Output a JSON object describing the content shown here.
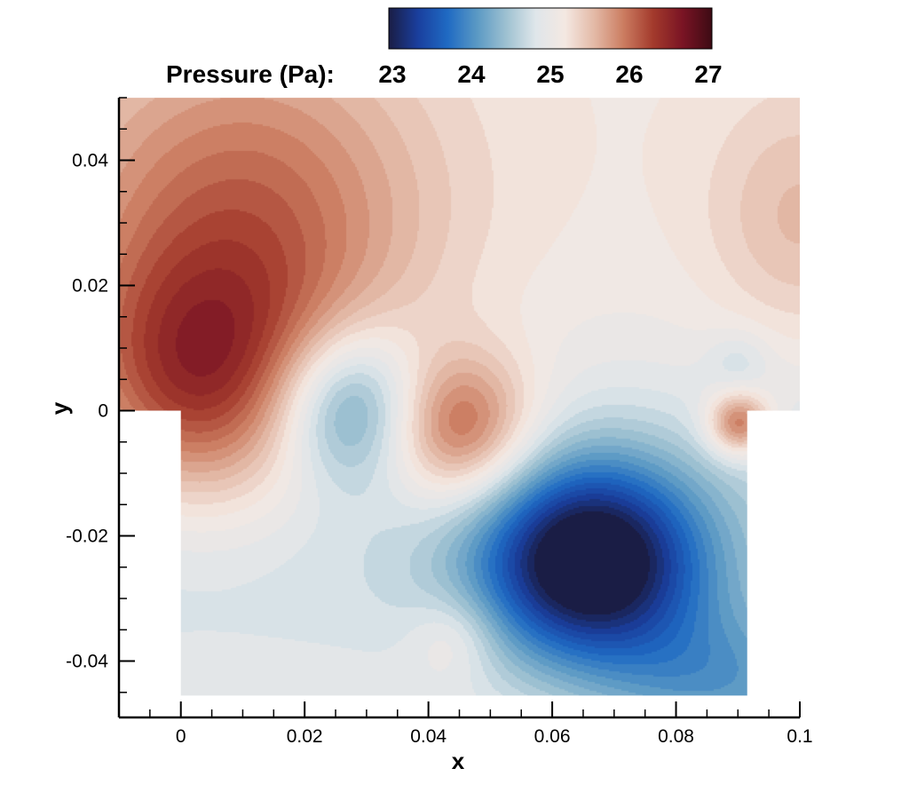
{
  "chart_data": {
    "type": "heatmap",
    "title": "",
    "xlabel": "x",
    "ylabel": "y",
    "colorbar_label": "Pressure (Pa):",
    "colorbar_ticks": [
      "23",
      "24",
      "25",
      "26",
      "27"
    ],
    "colorbar_range": [
      22.6,
      26.6
    ],
    "x_ticks": [
      "0",
      "0.02",
      "0.04",
      "0.06",
      "0.08",
      "0.1"
    ],
    "y_ticks": [
      "0.04",
      "0.02",
      "0",
      "-0.02",
      "-0.04"
    ],
    "xlim": [
      -0.01,
      0.1
    ],
    "ylim": [
      -0.049,
      0.05
    ],
    "domain_note": "field shown only inside cavity outline",
    "features": [
      {
        "kind": "low",
        "x": 0.066,
        "y": -0.024,
        "value": 22.6
      },
      {
        "kind": "low",
        "x": 0.027,
        "y": 0.001,
        "value": 23.7
      },
      {
        "kind": "high",
        "x": 0.045,
        "y": -0.003,
        "value": 25.9
      },
      {
        "kind": "high",
        "x": 0.003,
        "y": 0.004,
        "value": 25.9
      },
      {
        "kind": "high",
        "x": 0.09,
        "y": -0.002,
        "value": 25.8
      },
      {
        "kind": "low",
        "x": 0.09,
        "y": 0.008,
        "value": 24.5
      },
      {
        "kind": "high",
        "x": 0.044,
        "y": -0.036,
        "value": 25.1
      },
      {
        "kind": "low",
        "x": 0.088,
        "y": -0.044,
        "value": 24.0
      }
    ],
    "grid": false,
    "colormap": [
      "#1a1d45",
      "#1a3f9e",
      "#1f6ac3",
      "#5a99c4",
      "#9ec1d1",
      "#dfe6ea",
      "#f4e8e2",
      "#e3b9a6",
      "#cb7c60",
      "#a33a2c",
      "#7a1424",
      "#3d0b14"
    ]
  }
}
